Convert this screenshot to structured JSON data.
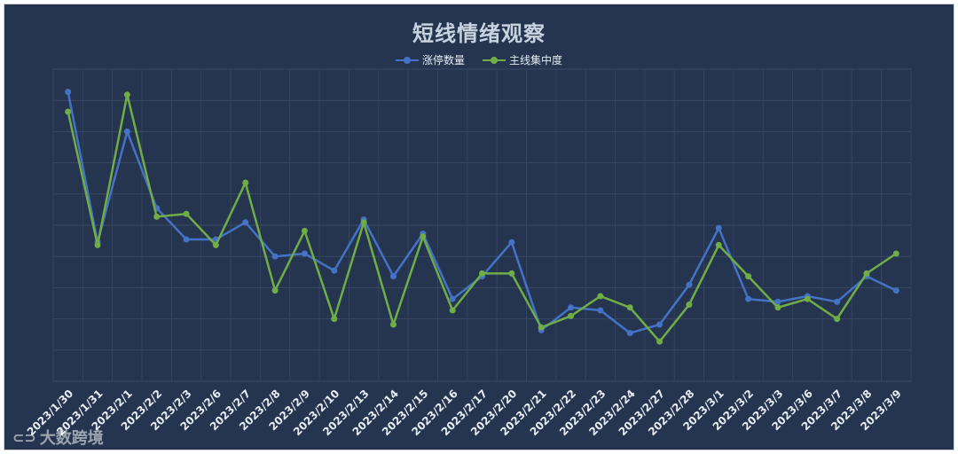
{
  "chart_data": {
    "type": "line",
    "title": "短线情绪观察",
    "categories": [
      "2023/1/30",
      "2023/1/31",
      "2023/2/1",
      "2023/2/2",
      "2023/2/3",
      "2023/2/6",
      "2023/2/7",
      "2023/2/8",
      "2023/2/9",
      "2023/2/10",
      "2023/2/13",
      "2023/2/14",
      "2023/2/15",
      "2023/2/16",
      "2023/2/17",
      "2023/2/20",
      "2023/2/21",
      "2023/2/22",
      "2023/2/23",
      "2023/2/24",
      "2023/2/27",
      "2023/2/28",
      "2023/3/1",
      "2023/3/2",
      "2023/3/3",
      "2023/3/6",
      "2023/3/7",
      "2023/3/8",
      "2023/3/9"
    ],
    "series": [
      {
        "name": "涨停数量",
        "color": "#4472c4",
        "values": [
          9.2,
          3.9,
          7.8,
          5.1,
          4.0,
          4.0,
          4.6,
          3.4,
          3.5,
          2.9,
          4.7,
          2.7,
          4.2,
          1.9,
          2.7,
          3.9,
          0.8,
          1.6,
          1.5,
          0.7,
          1.0,
          2.4,
          4.4,
          1.9,
          1.8,
          2.0,
          1.8,
          2.7,
          2.2
        ]
      },
      {
        "name": "主线集中度",
        "color": "#70ad47",
        "values": [
          8.5,
          3.8,
          9.1,
          4.8,
          4.9,
          3.8,
          6.0,
          2.2,
          4.3,
          1.2,
          4.6,
          1.0,
          4.1,
          1.5,
          2.8,
          2.8,
          0.9,
          1.3,
          2.0,
          1.6,
          0.4,
          1.7,
          3.8,
          2.7,
          1.6,
          1.9,
          1.2,
          2.8,
          3.5
        ]
      }
    ],
    "ylim": [
      -1,
      10
    ],
    "y_axis_labels": "hidden",
    "grid": true,
    "legend_position": "top-center"
  },
  "watermark": {
    "text": "大数跨境",
    "icon": "kd-logo-icon"
  }
}
